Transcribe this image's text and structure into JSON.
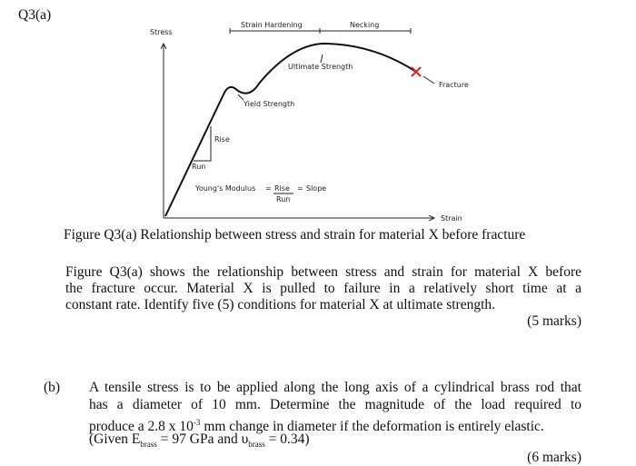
{
  "header": {
    "label": "Q3(a)"
  },
  "figure": {
    "labels": {
      "stress": "Stress",
      "strain": "Strain",
      "strain_hardening": "Strain Hardening",
      "necking": "Necking",
      "ultimate_strength": "Ultimate Strength",
      "fracture": "Fracture",
      "yield_strength": "Yield Strength",
      "rise": "Rise",
      "run": "Run",
      "youngs_modulus": "Young's Modulus",
      "equals_1": "=",
      "formula_rise": "Rise",
      "formula_run": "Run",
      "equals_2": "=",
      "slope": "Slope"
    },
    "caption": "Figure Q3(a)   Relationship between stress and strain for material X before fracture"
  },
  "question_a": {
    "lines": [
      "Figure Q3(a) shows the relationship between stress and strain for material X before",
      "the fracture occur. Material X is pulled to failure in a relatively short time at a",
      "constant rate. Identify five (5) conditions for material X at ultimate strength."
    ],
    "marks": "(5 marks)"
  },
  "question_b": {
    "label": "(b)",
    "line_0": "A tensile stress is to be applied along the long axis of a cylindrical brass rod that",
    "line_1": "has a  diameter of 10 mm. Determine the magnitude of the load required to",
    "line_2": [
      "produce a 2.8 x 10",
      "-3",
      " mm change in diameter if the deformation is entirely elastic."
    ],
    "line_3": [
      "(Given E",
      "brass",
      " = 97 GPa and υ",
      "brass",
      " = 0.34)"
    ],
    "marks": "(6 marks)"
  }
}
